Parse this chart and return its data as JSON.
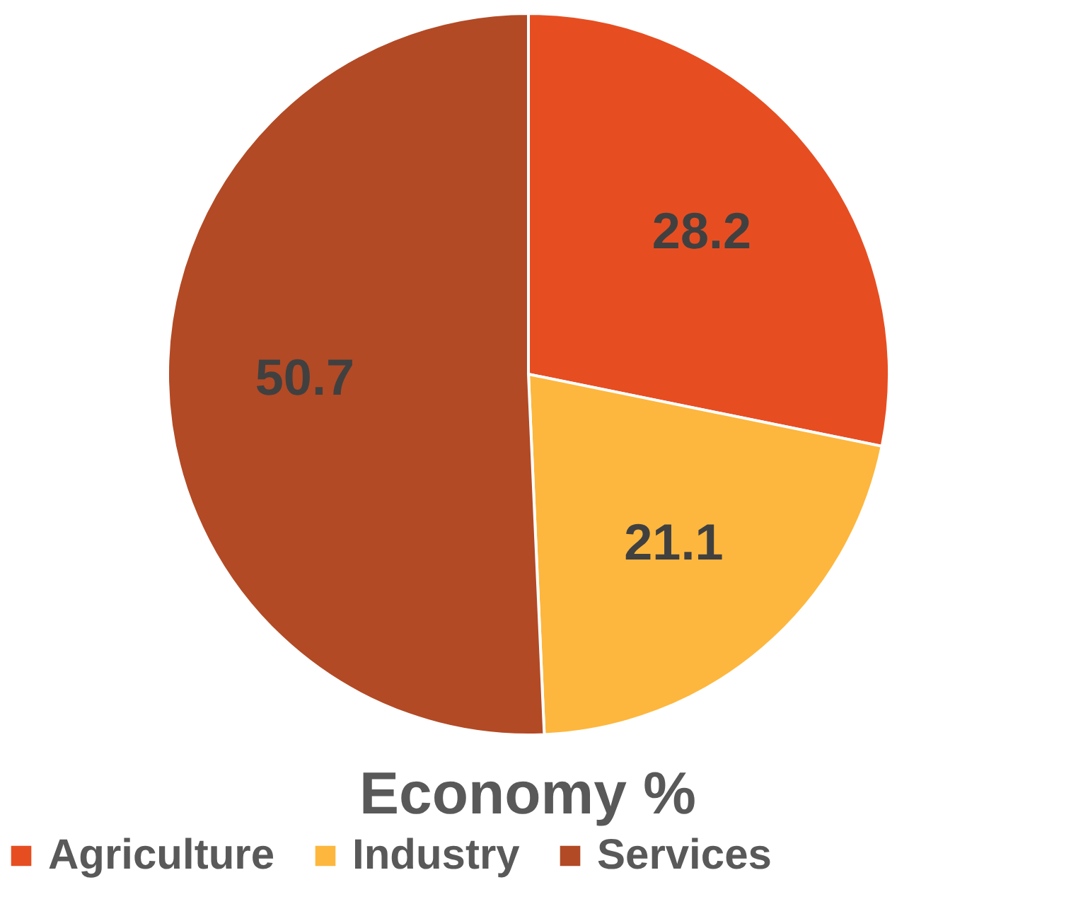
{
  "chart_data": {
    "type": "pie",
    "title": "Economy %",
    "categories": [
      "Agriculture",
      "Industry",
      "Services"
    ],
    "values": [
      28.2,
      21.1,
      50.7
    ],
    "colors": [
      "#e64e22",
      "#fdb73e",
      "#b24a25"
    ],
    "data_labels": true,
    "legend": "bottom"
  }
}
